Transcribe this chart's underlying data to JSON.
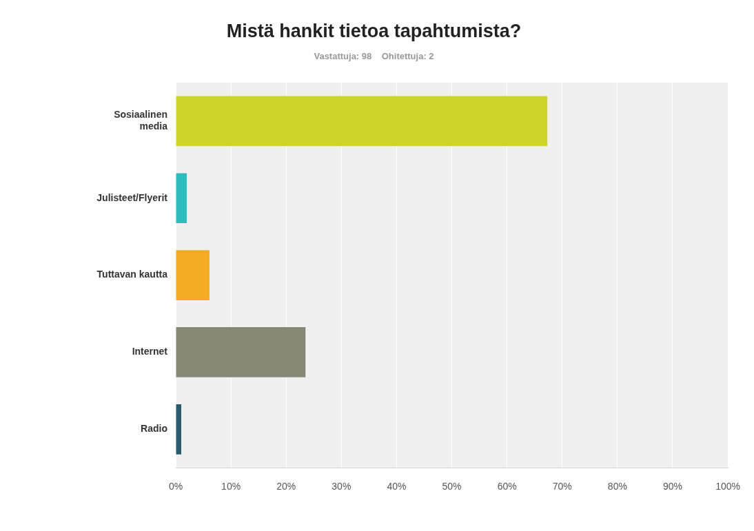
{
  "chart_data": {
    "type": "bar",
    "orientation": "horizontal",
    "title": "Mistä hankit tietoa tapahtumista?",
    "subtitle": "Vastattuja: 98    Ohitettuja: 2",
    "categories": [
      "Sosiaalinen media",
      "Julisteet/Flyerit",
      "Tuttavan kautta",
      "Internet",
      "Radio"
    ],
    "values": [
      67.3,
      2,
      6.1,
      23.5,
      1
    ],
    "colors": [
      "#cdd42a",
      "#2dbbbb",
      "#f4ab21",
      "#878778",
      "#2a5a6e"
    ],
    "xlim": [
      0,
      100
    ],
    "xticks": [
      {
        "value": 0,
        "label": "0%"
      },
      {
        "value": 10,
        "label": "10%"
      },
      {
        "value": 20,
        "label": "20%"
      },
      {
        "value": 30,
        "label": "30%"
      },
      {
        "value": 40,
        "label": "40%"
      },
      {
        "value": 50,
        "label": "50%"
      },
      {
        "value": 60,
        "label": "60%"
      },
      {
        "value": 70,
        "label": "70%"
      },
      {
        "value": 80,
        "label": "80%"
      },
      {
        "value": 90,
        "label": "90%"
      },
      {
        "value": 100,
        "label": "100%"
      }
    ],
    "grid": "x",
    "legend": false
  }
}
